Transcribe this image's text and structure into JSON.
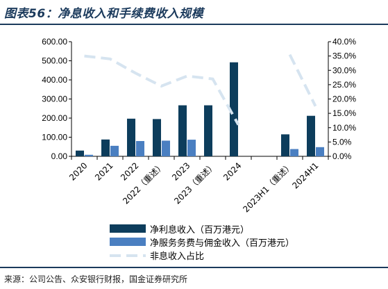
{
  "title": "图表56：净息收入和手续费收入规模",
  "source": "来源：公司公告、众安银行财报，国金证券研究所",
  "chart_data": {
    "type": "bar",
    "categories": [
      "2020",
      "2021",
      "2022",
      "2022（重述）",
      "2023",
      "2023（重述）",
      "2024",
      "",
      "2023H1（重述）",
      "2024H1"
    ],
    "series": [
      {
        "name": "净利息收入（百万港元）",
        "kind": "bar",
        "axis": "left",
        "color": "#0d3d5c",
        "values": [
          30,
          88,
          197,
          195,
          267,
          267,
          492,
          null,
          115,
          212
        ]
      },
      {
        "name": "净服务务费与佣金收入（百万港元）",
        "kind": "bar",
        "axis": "left",
        "color": "#4a7fc1",
        "values": [
          8,
          55,
          80,
          82,
          87,
          null,
          null,
          null,
          38,
          48
        ]
      },
      {
        "name": "非息收入占比",
        "kind": "line",
        "axis": "right",
        "color": "#d6e4f0",
        "values": [
          0.35,
          0.34,
          0.29,
          0.245,
          0.28,
          0.27,
          0.11,
          null,
          0.355,
          0.175
        ]
      }
    ],
    "left_axis": {
      "ylim": [
        0,
        600
      ],
      "ticks": [
        "0.00",
        "100.00",
        "200.00",
        "300.00",
        "400.00",
        "500.00",
        "600.00"
      ]
    },
    "right_axis": {
      "ylim": [
        0,
        0.4
      ],
      "ticks": [
        "0.0%",
        "5.0%",
        "10.0%",
        "15.0%",
        "20.0%",
        "25.0%",
        "30.0%",
        "35.0%",
        "40.0%"
      ]
    },
    "legend": {
      "position": "bottom",
      "labels": [
        "净利息收入（百万港元）",
        "净服务务费与佣金收入（百万港元）",
        "非息收入占比"
      ]
    },
    "grid": false
  }
}
